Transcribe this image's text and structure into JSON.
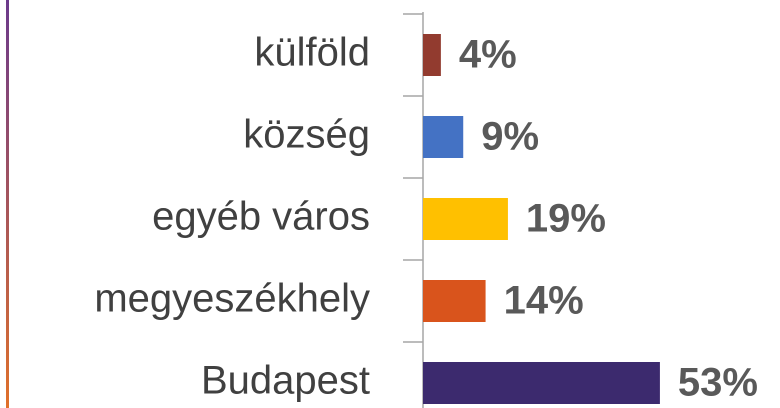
{
  "chart_data": {
    "type": "bar",
    "orientation": "horizontal",
    "categories": [
      "külföld",
      "község",
      "egyéb város",
      "megyeszékhely",
      "Budapest"
    ],
    "values": [
      4,
      9,
      19,
      14,
      53
    ],
    "value_labels": [
      "4%",
      "9%",
      "19%",
      "14%",
      "53%"
    ],
    "colors": [
      "#923b2f",
      "#4472c4",
      "#ffc000",
      "#d9541c",
      "#3c2a6e"
    ]
  }
}
